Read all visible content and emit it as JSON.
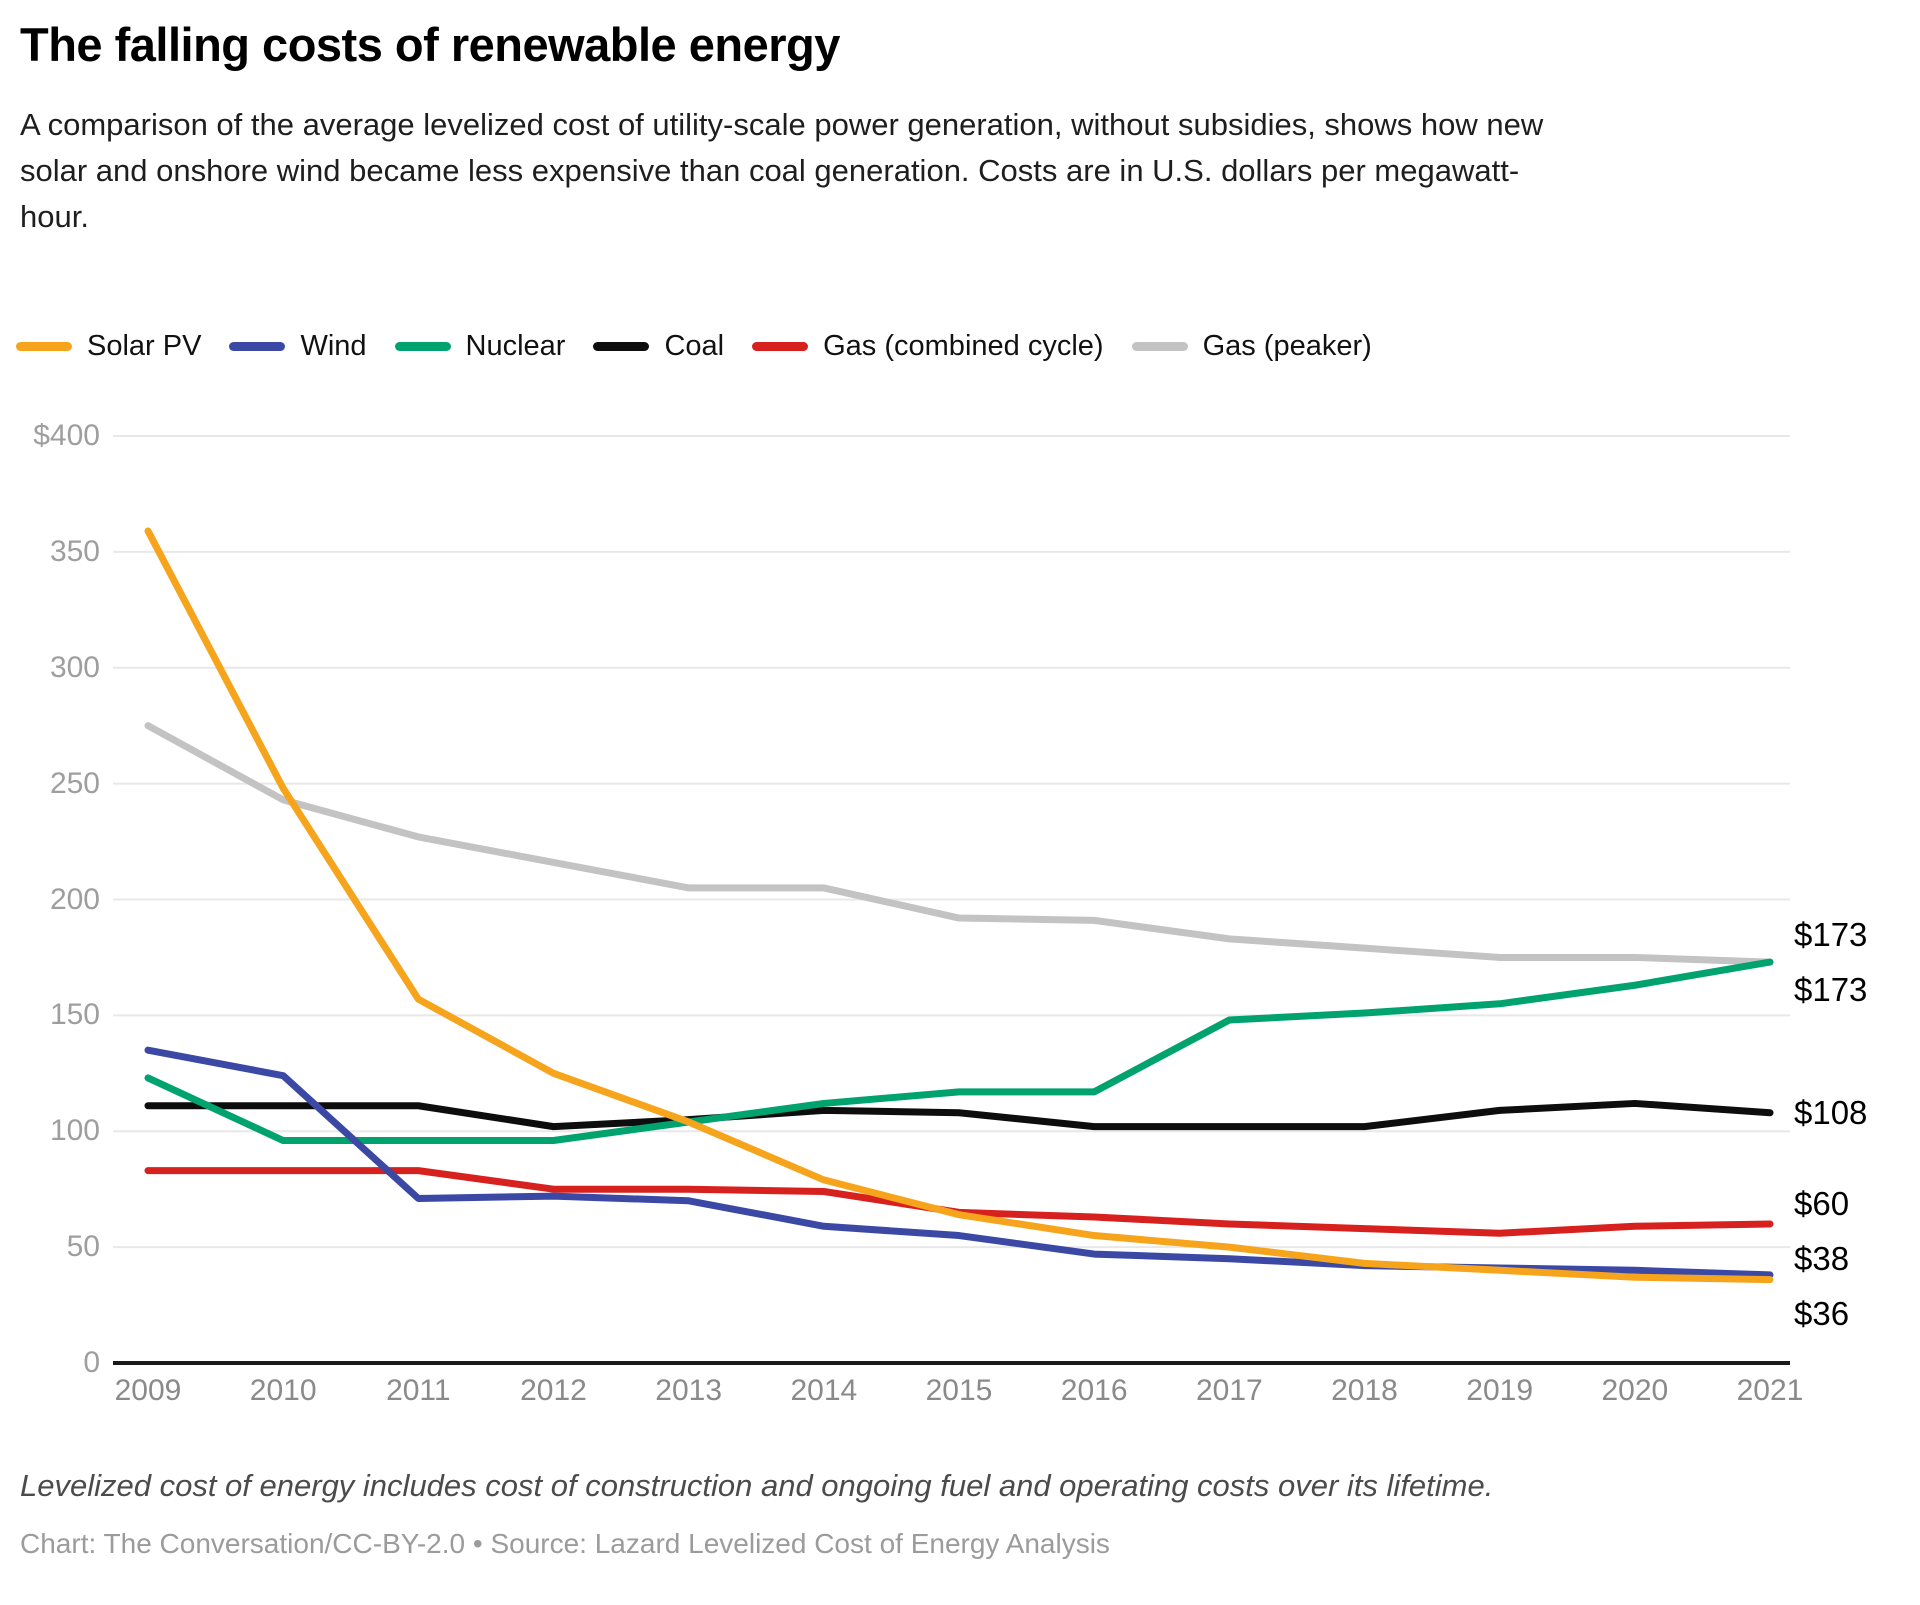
{
  "header": {
    "title": "The falling costs of renewable energy",
    "subtitle": "A comparison of the average levelized cost of utility-scale power generation, without subsidies, shows how new solar and onshore wind became less expensive than coal generation. Costs are in U.S. dollars per megawatt-hour."
  },
  "chart_data": {
    "type": "line",
    "x": [
      2009,
      2010,
      2011,
      2012,
      2013,
      2014,
      2015,
      2016,
      2017,
      2018,
      2019,
      2020,
      2021
    ],
    "series": [
      {
        "name": "Gas (peaker)",
        "color": "#c3c3c3",
        "end_label": "$173",
        "values": [
          275,
          243,
          227,
          216,
          205,
          205,
          192,
          191,
          183,
          179,
          175,
          175,
          173
        ]
      },
      {
        "name": "Gas (combined cycle)",
        "color": "#d7211e",
        "end_label": "$60",
        "values": [
          83,
          83,
          83,
          75,
          75,
          74,
          65,
          63,
          60,
          58,
          56,
          59,
          60
        ]
      },
      {
        "name": "Coal",
        "color": "#0d0d0d",
        "end_label": "$108",
        "values": [
          111,
          111,
          111,
          102,
          105,
          109,
          108,
          102,
          102,
          102,
          109,
          112,
          108
        ]
      },
      {
        "name": "Nuclear",
        "color": "#00a36d",
        "end_label": "$173",
        "values": [
          123,
          96,
          96,
          96,
          104,
          112,
          117,
          117,
          148,
          151,
          155,
          163,
          173
        ]
      },
      {
        "name": "Wind",
        "color": "#3b49a5",
        "end_label": "$38",
        "values": [
          135,
          124,
          71,
          72,
          70,
          59,
          55,
          47,
          45,
          42,
          41,
          40,
          38
        ]
      },
      {
        "name": "Solar PV",
        "color": "#f7a41d",
        "end_label": "$36",
        "values": [
          359,
          248,
          157,
          125,
          104,
          79,
          64,
          55,
          50,
          43,
          40,
          37,
          36
        ]
      }
    ],
    "legend_order": [
      "Solar PV",
      "Wind",
      "Nuclear",
      "Coal",
      "Gas (combined cycle)",
      "Gas (peaker)"
    ],
    "legend_position": "top",
    "grid": true,
    "ylim": [
      0,
      400
    ],
    "yticks": [
      {
        "label": "$400",
        "value": 400
      },
      {
        "label": "350",
        "value": 350
      },
      {
        "label": "300",
        "value": 300
      },
      {
        "label": "250",
        "value": 250
      },
      {
        "label": "200",
        "value": 200
      },
      {
        "label": "150",
        "value": 150
      },
      {
        "label": "100",
        "value": 100
      },
      {
        "label": "50",
        "value": 50
      },
      {
        "label": "0",
        "value": 0
      }
    ],
    "title": "The falling costs of renewable energy",
    "xlabel": "",
    "ylabel": "Costs in U.S. dollars per megawatt-hour"
  },
  "footer": {
    "note": "Levelized cost of energy includes cost of construction and ongoing fuel and operating costs over its lifetime.",
    "credit": "Chart: The Conversation/CC-BY-2.0 • Source: Lazard Levelized Cost of Energy Analysis"
  }
}
